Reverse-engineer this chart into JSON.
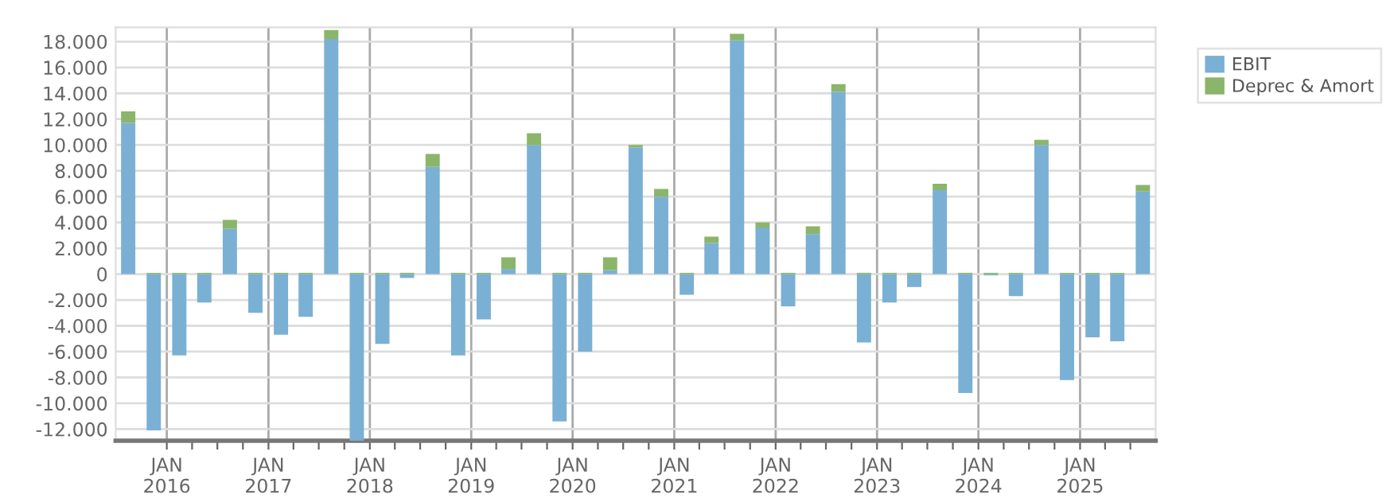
{
  "chart_data": {
    "type": "bar",
    "stacked": true,
    "x": [
      "2015-08-15",
      "2015-11-15",
      "2016-02-15",
      "2016-05-15",
      "2016-08-15",
      "2016-11-15",
      "2017-02-15",
      "2017-05-15",
      "2017-08-15",
      "2017-11-15",
      "2018-02-15",
      "2018-05-15",
      "2018-08-15",
      "2018-11-15",
      "2019-02-15",
      "2019-05-15",
      "2019-08-15",
      "2019-11-15",
      "2020-02-15",
      "2020-05-15",
      "2020-08-15",
      "2020-11-15",
      "2021-02-15",
      "2021-05-15",
      "2021-08-15",
      "2021-11-15",
      "2022-02-15",
      "2022-05-15",
      "2022-08-15",
      "2022-11-15",
      "2023-02-15",
      "2023-05-15",
      "2023-08-15",
      "2023-11-15",
      "2024-02-15",
      "2024-05-15",
      "2024-08-15",
      "2024-11-15",
      "2025-02-15",
      "2025-05-15",
      "2025-08-15"
    ],
    "series": [
      {
        "name": "EBIT",
        "color": "#7ab0d4",
        "values": [
          11700,
          -12100,
          -6300,
          -2200,
          3500,
          -3000,
          -4700,
          -3300,
          18200,
          -12900,
          -5400,
          -300,
          8300,
          -6300,
          -3500,
          400,
          10000,
          -11400,
          -6000,
          300,
          9800,
          6000,
          -1600,
          2400,
          18100,
          3600,
          -2500,
          3100,
          14100,
          -5300,
          -2200,
          -1000,
          6500,
          -9200,
          -100,
          -1700,
          10000,
          -8200,
          -4900,
          -5200,
          6400
        ]
      },
      {
        "name": "Deprec & Amort",
        "color": "#8bb56a",
        "values": [
          900,
          100,
          100,
          100,
          700,
          100,
          100,
          100,
          700,
          100,
          100,
          100,
          1000,
          100,
          100,
          900,
          900,
          100,
          100,
          1000,
          200,
          600,
          100,
          500,
          500,
          400,
          100,
          600,
          600,
          100,
          100,
          100,
          500,
          100,
          100,
          100,
          400,
          100,
          100,
          100,
          500
        ]
      }
    ],
    "xlim": [
      "2015-07-01",
      "2025-09-30"
    ],
    "xticks": [
      {
        "value": "2016-01-01",
        "label": "JAN\n2016"
      },
      {
        "value": "2016-04-01",
        "label": null
      },
      {
        "value": "2016-07-01",
        "label": null
      },
      {
        "value": "2016-10-01",
        "label": null
      },
      {
        "value": "2017-01-01",
        "label": "JAN\n2017"
      },
      {
        "value": "2017-04-01",
        "label": null
      },
      {
        "value": "2017-07-01",
        "label": null
      },
      {
        "value": "2017-10-01",
        "label": null
      },
      {
        "value": "2018-01-01",
        "label": "JAN\n2018"
      },
      {
        "value": "2018-04-01",
        "label": null
      },
      {
        "value": "2018-07-01",
        "label": null
      },
      {
        "value": "2018-10-01",
        "label": null
      },
      {
        "value": "2019-01-01",
        "label": "JAN\n2019"
      },
      {
        "value": "2019-04-01",
        "label": null
      },
      {
        "value": "2019-07-01",
        "label": null
      },
      {
        "value": "2019-10-01",
        "label": null
      },
      {
        "value": "2020-01-01",
        "label": "JAN\n2020"
      },
      {
        "value": "2020-04-01",
        "label": null
      },
      {
        "value": "2020-07-01",
        "label": null
      },
      {
        "value": "2020-10-01",
        "label": null
      },
      {
        "value": "2021-01-01",
        "label": "JAN\n2021"
      },
      {
        "value": "2021-04-01",
        "label": null
      },
      {
        "value": "2021-07-01",
        "label": null
      },
      {
        "value": "2021-10-01",
        "label": null
      },
      {
        "value": "2022-01-01",
        "label": "JAN\n2022"
      },
      {
        "value": "2022-04-01",
        "label": null
      },
      {
        "value": "2022-07-01",
        "label": null
      },
      {
        "value": "2022-10-01",
        "label": null
      },
      {
        "value": "2023-01-01",
        "label": "JAN\n2023"
      },
      {
        "value": "2023-04-01",
        "label": null
      },
      {
        "value": "2023-07-01",
        "label": null
      },
      {
        "value": "2023-10-01",
        "label": null
      },
      {
        "value": "2024-01-01",
        "label": "JAN\n2024"
      },
      {
        "value": "2024-04-01",
        "label": null
      },
      {
        "value": "2024-07-01",
        "label": null
      },
      {
        "value": "2024-10-01",
        "label": null
      },
      {
        "value": "2025-01-01",
        "label": "JAN\n2025"
      },
      {
        "value": "2025-04-01",
        "label": null
      },
      {
        "value": "2025-07-01",
        "label": null
      }
    ],
    "ylim": [
      -12900,
      19100
    ],
    "yticks": [
      {
        "value": -12000,
        "label": "-12.000"
      },
      {
        "value": -10000,
        "label": "-10.000"
      },
      {
        "value": -8000,
        "label": "-8.000"
      },
      {
        "value": -6000,
        "label": "-6.000"
      },
      {
        "value": -4000,
        "label": "-4.000"
      },
      {
        "value": -2000,
        "label": "-2.000"
      },
      0,
      {
        "value": 2000,
        "label": "2.000"
      },
      {
        "value": 4000,
        "label": "4.000"
      },
      {
        "value": 6000,
        "label": "6.000"
      },
      {
        "value": 8000,
        "label": "8.000"
      },
      {
        "value": 10000,
        "label": "10.000"
      },
      {
        "value": 12000,
        "label": "12.000"
      },
      {
        "value": 14000,
        "label": "14.000"
      },
      {
        "value": 16000,
        "label": "16.000"
      },
      {
        "value": 18000,
        "label": "18.000"
      }
    ],
    "grid": true,
    "legend": "top right"
  }
}
